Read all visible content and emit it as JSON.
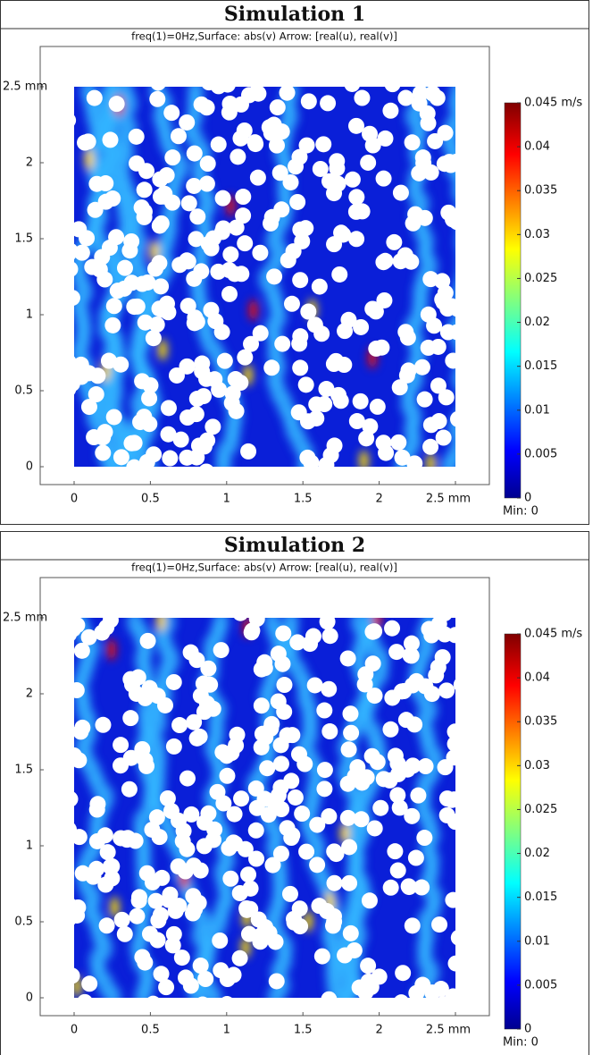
{
  "chart_data": [
    {
      "type": "heatmap",
      "title": "Simulation 1",
      "subtitle": "freq(1)=0Hz,Surface: abs(v)   Arrow: [real(u), real(v)]",
      "xlim": [
        0,
        2.5
      ],
      "ylim": [
        0,
        2.5
      ],
      "xticks": [
        0,
        0.5,
        1,
        1.5,
        2,
        {
          "value": 2.5,
          "label": "2.5 mm"
        }
      ],
      "yticks": [
        0,
        0.5,
        1,
        1.5,
        2,
        {
          "value": 2.5,
          "label": "2.5 mm"
        }
      ],
      "clim": [
        0,
        0.045
      ],
      "cticks": [
        0,
        0.005,
        0.01,
        0.015,
        0.02,
        0.025,
        0.03,
        0.035,
        0.04,
        {
          "value": 0.045,
          "label": "0.045 m/s"
        }
      ],
      "colorbar_min_label": "Min: 0"
    },
    {
      "type": "heatmap",
      "title": "Simulation 2",
      "subtitle": "freq(1)=0Hz,Surface: abs(v)   Arrow: [real(u), real(v)]",
      "xlim": [
        0,
        2.5
      ],
      "ylim": [
        0,
        2.5
      ],
      "xticks": [
        0,
        0.5,
        1,
        1.5,
        2,
        {
          "value": 2.5,
          "label": "2.5 mm"
        }
      ],
      "yticks": [
        0,
        0.5,
        1,
        1.5,
        2,
        {
          "value": 2.5,
          "label": "2.5 mm"
        }
      ],
      "clim": [
        0,
        0.045
      ],
      "cticks": [
        0,
        0.005,
        0.01,
        0.015,
        0.02,
        0.025,
        0.03,
        0.035,
        0.04,
        {
          "value": 0.045,
          "label": "0.045 m/s"
        }
      ],
      "colorbar_min_label": "Min: 0"
    }
  ]
}
